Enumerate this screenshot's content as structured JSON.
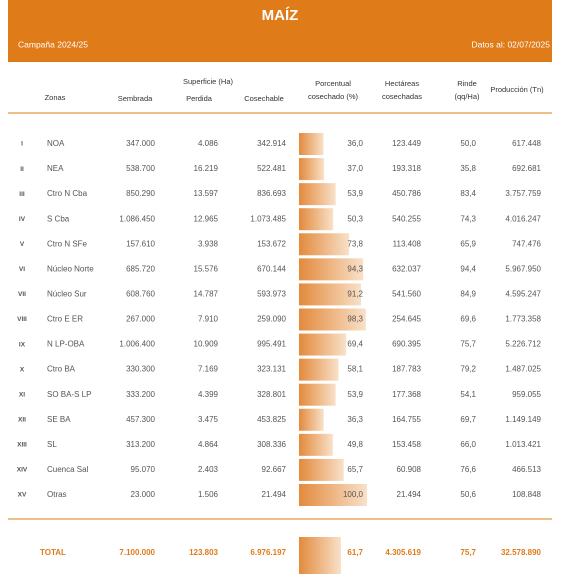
{
  "header": {
    "title": "MAÍZ",
    "campaign": "Campaña 2024/25",
    "date": "Datos al: 02/07/2025"
  },
  "table": {
    "group_header": "Superficie (Ha)",
    "columns": [
      "Zonas",
      "Sembrada",
      "Perdida",
      "Cosechable",
      [
        "Porcentual",
        "cosechado (%)"
      ],
      [
        "Hectáreas",
        "cosechadas"
      ],
      [
        "Rinde",
        "(qq/Ha)"
      ],
      "Producción (Tn)"
    ],
    "rows": [
      [
        "I",
        "NOA",
        "347.000",
        "4.086",
        "342.914",
        {
          "value": 36.0,
          "label": "36,0"
        },
        "123.449",
        "50,0",
        "617.448"
      ],
      [
        "II",
        "NEA",
        "538.700",
        "16.219",
        "522.481",
        {
          "value": 37.0,
          "label": "37,0"
        },
        "193.318",
        "35,8",
        "692.681"
      ],
      [
        "III",
        "Ctro N Cba",
        "850.290",
        "13.597",
        "836.693",
        {
          "value": 53.9,
          "label": "53,9"
        },
        "450.786",
        "83,4",
        "3.757.759"
      ],
      [
        "IV",
        "S Cba",
        "1.086.450",
        "12.965",
        "1.073.485",
        {
          "value": 50.3,
          "label": "50,3"
        },
        "540.255",
        "74,3",
        "4.016.247"
      ],
      [
        "V",
        "Ctro N SFe",
        "157.610",
        "3.938",
        "153.672",
        {
          "value": 73.8,
          "label": "73,8"
        },
        "113.408",
        "65,9",
        "747.476"
      ],
      [
        "VI",
        "Núcleo Norte",
        "685.720",
        "15.576",
        "670.144",
        {
          "value": 94.3,
          "label": "94,3"
        },
        "632.037",
        "94,4",
        "5.967.950"
      ],
      [
        "VII",
        "Núcleo Sur",
        "608.760",
        "14.787",
        "593.973",
        {
          "value": 91.2,
          "label": "91,2"
        },
        "541.560",
        "84,9",
        "4.595.247"
      ],
      [
        "VIII",
        "Ctro E ER",
        "267.000",
        "7.910",
        "259.090",
        {
          "value": 98.3,
          "label": "98,3"
        },
        "254.645",
        "69,6",
        "1.773.358"
      ],
      [
        "IX",
        "N LP-OBA",
        "1.006.400",
        "10.909",
        "995.491",
        {
          "value": 69.4,
          "label": "69,4"
        },
        "690.395",
        "75,7",
        "5.226.712"
      ],
      [
        "X",
        "Ctro BA",
        "330.300",
        "7.169",
        "323.131",
        {
          "value": 58.1,
          "label": "58,1"
        },
        "187.783",
        "79,2",
        "1.487.025"
      ],
      [
        "XI",
        "SO BA-S LP",
        "333.200",
        "4.399",
        "328.801",
        {
          "value": 53.9,
          "label": "53,9"
        },
        "177.368",
        "54,1",
        "959.055"
      ],
      [
        "XII",
        "SE BA",
        "457.300",
        "3.475",
        "453.825",
        {
          "value": 36.3,
          "label": "36,3"
        },
        "164.755",
        "69,7",
        "1.149.149"
      ],
      [
        "XIII",
        "SL",
        "313.200",
        "4.864",
        "308.336",
        {
          "value": 49.8,
          "label": "49,8"
        },
        "153.458",
        "66,0",
        "1.013.421"
      ],
      [
        "XIV",
        "Cuenca Sal",
        "95.070",
        "2.403",
        "92.667",
        {
          "value": 65.7,
          "label": "65,7"
        },
        "60.908",
        "76,6",
        "466.513"
      ],
      [
        "XV",
        "Otras",
        "23.000",
        "1.506",
        "21.494",
        {
          "value": 100.0,
          "label": "100,0"
        },
        "21.494",
        "50,6",
        "108.848"
      ]
    ],
    "total": [
      "TOTAL",
      "7.100.000",
      "123.803",
      "6.976.197",
      {
        "value": 61.7,
        "label": "61,7"
      },
      "4.305.619",
      "75,7",
      "32.578.890"
    ]
  }
}
